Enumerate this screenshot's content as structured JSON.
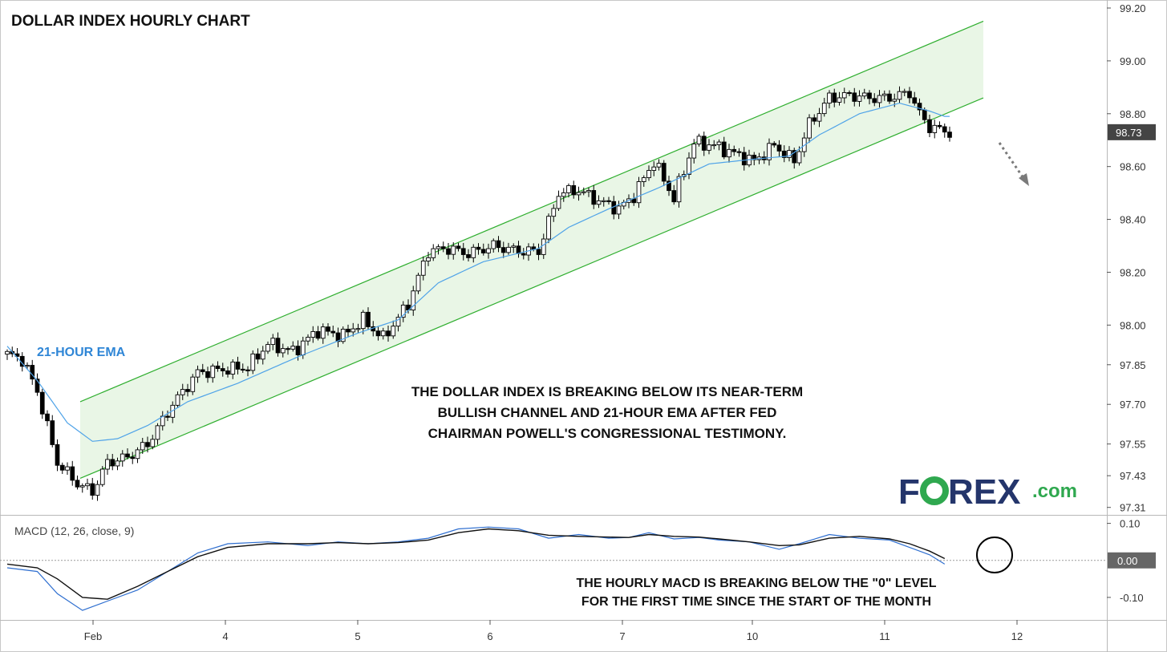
{
  "chart_data": [
    {
      "type": "candlestick",
      "title": "DOLLAR INDEX HOURLY CHART",
      "x_ticks": [
        "Feb",
        "4",
        "5",
        "6",
        "7",
        "10",
        "11",
        "12"
      ],
      "y_ticks": [
        "99.20",
        "99.00",
        "98.80",
        "98.73",
        "98.60",
        "98.40",
        "98.20",
        "98.00",
        "97.85",
        "97.70",
        "97.55",
        "97.43",
        "97.31"
      ],
      "ylim": [
        97.3,
        99.2
      ],
      "current_price": "98.73",
      "overlay_label": "21-HOUR EMA",
      "annotation": [
        "THE DOLLAR INDEX IS BREAKING BELOW ITS NEAR-TERM",
        "BULLISH CHANNEL AND 21-HOUR EMA AFTER FED",
        "CHAIRMAN POWELL'S CONGRESSIONAL TESTIMONY."
      ],
      "channel_upper": {
        "x": [
          0.0,
          2.2
        ],
        "y": [
          97.71,
          99.15
        ]
      },
      "channel_lower": {
        "x": [
          0.0,
          2.2
        ],
        "y": [
          97.42,
          98.86
        ]
      },
      "close_anchors": [
        [
          0,
          97.89
        ],
        [
          3,
          97.87
        ],
        [
          6,
          97.75
        ],
        [
          10,
          97.48
        ],
        [
          14,
          97.4
        ],
        [
          17,
          97.37
        ],
        [
          20,
          97.48
        ],
        [
          24,
          97.5
        ],
        [
          28,
          97.55
        ],
        [
          33,
          97.7
        ],
        [
          38,
          97.82
        ],
        [
          42,
          97.83
        ],
        [
          48,
          97.84
        ],
        [
          52,
          97.93
        ],
        [
          57,
          97.9
        ],
        [
          62,
          97.98
        ],
        [
          67,
          97.96
        ],
        [
          71,
          98.02
        ],
        [
          75,
          97.95
        ],
        [
          80,
          98.08
        ],
        [
          84,
          98.28
        ],
        [
          88,
          98.29
        ],
        [
          92,
          98.27
        ],
        [
          97,
          98.3
        ],
        [
          102,
          98.28
        ],
        [
          106,
          98.28
        ],
        [
          110,
          98.5
        ],
        [
          114,
          98.51
        ],
        [
          118,
          98.47
        ],
        [
          122,
          98.44
        ],
        [
          125,
          98.49
        ],
        [
          129,
          98.62
        ],
        [
          133,
          98.48
        ],
        [
          137,
          98.69
        ],
        [
          141,
          98.68
        ],
        [
          145,
          98.65
        ],
        [
          149,
          98.62
        ],
        [
          153,
          98.68
        ],
        [
          157,
          98.62
        ],
        [
          160,
          98.76
        ],
        [
          164,
          98.86
        ],
        [
          168,
          98.87
        ],
        [
          172,
          98.86
        ],
        [
          176,
          98.86
        ],
        [
          180,
          98.88
        ],
        [
          182,
          98.8
        ],
        [
          184,
          98.75
        ],
        [
          186,
          98.74
        ],
        [
          188,
          98.73
        ]
      ],
      "ema_values_at_candles": [
        [
          0,
          97.92
        ],
        [
          6,
          97.79
        ],
        [
          12,
          97.63
        ],
        [
          17,
          97.56
        ],
        [
          22,
          97.57
        ],
        [
          28,
          97.62
        ],
        [
          36,
          97.71
        ],
        [
          46,
          97.78
        ],
        [
          58,
          97.88
        ],
        [
          70,
          97.97
        ],
        [
          78,
          98.02
        ],
        [
          86,
          98.16
        ],
        [
          95,
          98.24
        ],
        [
          106,
          98.29
        ],
        [
          112,
          98.37
        ],
        [
          120,
          98.44
        ],
        [
          130,
          98.52
        ],
        [
          140,
          98.61
        ],
        [
          150,
          98.63
        ],
        [
          156,
          98.64
        ],
        [
          162,
          98.72
        ],
        [
          170,
          98.8
        ],
        [
          178,
          98.84
        ],
        [
          184,
          98.81
        ],
        [
          187,
          98.79
        ]
      ]
    },
    {
      "type": "line",
      "title": "MACD (12, 26, close, 9)",
      "y_ticks": [
        "0.10",
        "0.00",
        "-0.10"
      ],
      "ylim": [
        -0.15,
        0.11
      ],
      "zero_label": "0.00",
      "annotation": [
        "THE HOURLY MACD IS BREAKING BELOW THE \"0\" LEVEL",
        "FOR THE FIRST TIME SINCE THE START OF THE MONTH"
      ],
      "series": [
        {
          "name": "MACD",
          "color": "#2f6fd0",
          "points": [
            [
              0,
              -0.02
            ],
            [
              6,
              -0.03
            ],
            [
              10,
              -0.09
            ],
            [
              15,
              -0.135
            ],
            [
              20,
              -0.11
            ],
            [
              26,
              -0.08
            ],
            [
              32,
              -0.03
            ],
            [
              38,
              0.02
            ],
            [
              44,
              0.045
            ],
            [
              52,
              0.05
            ],
            [
              60,
              0.04
            ],
            [
              66,
              0.05
            ],
            [
              72,
              0.045
            ],
            [
              78,
              0.05
            ],
            [
              84,
              0.06
            ],
            [
              90,
              0.085
            ],
            [
              96,
              0.09
            ],
            [
              102,
              0.085
            ],
            [
              108,
              0.06
            ],
            [
              114,
              0.07
            ],
            [
              120,
              0.06
            ],
            [
              124,
              0.062
            ],
            [
              128,
              0.075
            ],
            [
              133,
              0.058
            ],
            [
              138,
              0.062
            ],
            [
              142,
              0.055
            ],
            [
              148,
              0.05
            ],
            [
              154,
              0.03
            ],
            [
              158,
              0.045
            ],
            [
              164,
              0.07
            ],
            [
              170,
              0.06
            ],
            [
              176,
              0.055
            ],
            [
              180,
              0.035
            ],
            [
              184,
              0.015
            ],
            [
              187,
              -0.01
            ]
          ]
        },
        {
          "name": "Signal",
          "color": "#111111",
          "points": [
            [
              0,
              -0.01
            ],
            [
              6,
              -0.02
            ],
            [
              10,
              -0.05
            ],
            [
              15,
              -0.1
            ],
            [
              20,
              -0.105
            ],
            [
              26,
              -0.07
            ],
            [
              32,
              -0.03
            ],
            [
              38,
              0.01
            ],
            [
              44,
              0.035
            ],
            [
              52,
              0.045
            ],
            [
              60,
              0.045
            ],
            [
              66,
              0.048
            ],
            [
              72,
              0.045
            ],
            [
              78,
              0.048
            ],
            [
              84,
              0.055
            ],
            [
              90,
              0.075
            ],
            [
              96,
              0.085
            ],
            [
              102,
              0.08
            ],
            [
              108,
              0.068
            ],
            [
              114,
              0.065
            ],
            [
              120,
              0.063
            ],
            [
              124,
              0.062
            ],
            [
              128,
              0.07
            ],
            [
              133,
              0.065
            ],
            [
              138,
              0.063
            ],
            [
              142,
              0.058
            ],
            [
              148,
              0.05
            ],
            [
              154,
              0.04
            ],
            [
              158,
              0.042
            ],
            [
              164,
              0.06
            ],
            [
              170,
              0.065
            ],
            [
              176,
              0.058
            ],
            [
              180,
              0.045
            ],
            [
              184,
              0.025
            ],
            [
              187,
              0.005
            ]
          ]
        }
      ]
    }
  ],
  "logo": {
    "text_a": "F",
    "text_b": "REX",
    "text_c": ".com"
  },
  "colors": {
    "channel_line": "#2fae2f",
    "channel_fill": "#e9f6e6",
    "ema": "#4fa3e8",
    "ema_label": "#2f86d6",
    "candle_up": "#ffffff",
    "candle_down": "#000000",
    "highlight_candle": "#5bb65b",
    "price_tag": "#444444",
    "logo_green": "#2fa84f",
    "logo_navy": "#24356b"
  }
}
